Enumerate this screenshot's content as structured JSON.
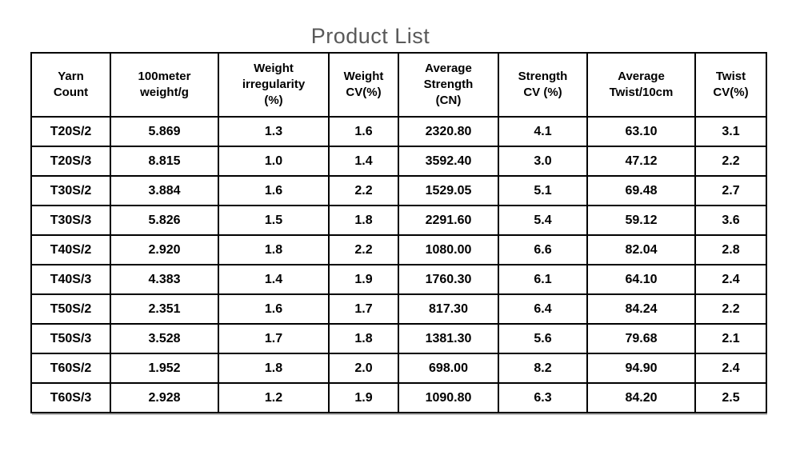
{
  "title": "Product List",
  "colors": {
    "title_text": "#595959",
    "table_border": "#000000",
    "cell_text": "#000000",
    "background": "#ffffff"
  },
  "table": {
    "headers": [
      "Yarn\nCount",
      "100meter\nweight/g",
      "Weight\nirregularity\n(%)",
      "Weight\nCV(%)",
      "Average\nStrength\n(CN)",
      "Strength\nCV (%)",
      "Average\nTwist/10cm",
      "Twist\nCV(%)"
    ],
    "rows": [
      [
        "T20S/2",
        "5.869",
        "1.3",
        "1.6",
        "2320.80",
        "4.1",
        "63.10",
        "3.1"
      ],
      [
        "T20S/3",
        "8.815",
        "1.0",
        "1.4",
        "3592.40",
        "3.0",
        "47.12",
        "2.2"
      ],
      [
        "T30S/2",
        "3.884",
        "1.6",
        "2.2",
        "1529.05",
        "5.1",
        "69.48",
        "2.7"
      ],
      [
        "T30S/3",
        "5.826",
        "1.5",
        "1.8",
        "2291.60",
        "5.4",
        "59.12",
        "3.6"
      ],
      [
        "T40S/2",
        "2.920",
        "1.8",
        "2.2",
        "1080.00",
        "6.6",
        "82.04",
        "2.8"
      ],
      [
        "T40S/3",
        "4.383",
        "1.4",
        "1.9",
        "1760.30",
        "6.1",
        "64.10",
        "2.4"
      ],
      [
        "T50S/2",
        "2.351",
        "1.6",
        "1.7",
        "817.30",
        "6.4",
        "84.24",
        "2.2"
      ],
      [
        "T50S/3",
        "3.528",
        "1.7",
        "1.8",
        "1381.30",
        "5.6",
        "79.68",
        "2.1"
      ],
      [
        "T60S/2",
        "1.952",
        "1.8",
        "2.0",
        "698.00",
        "8.2",
        "94.90",
        "2.4"
      ],
      [
        "T60S/3",
        "2.928",
        "1.2",
        "1.9",
        "1090.80",
        "6.3",
        "84.20",
        "2.5"
      ]
    ]
  }
}
